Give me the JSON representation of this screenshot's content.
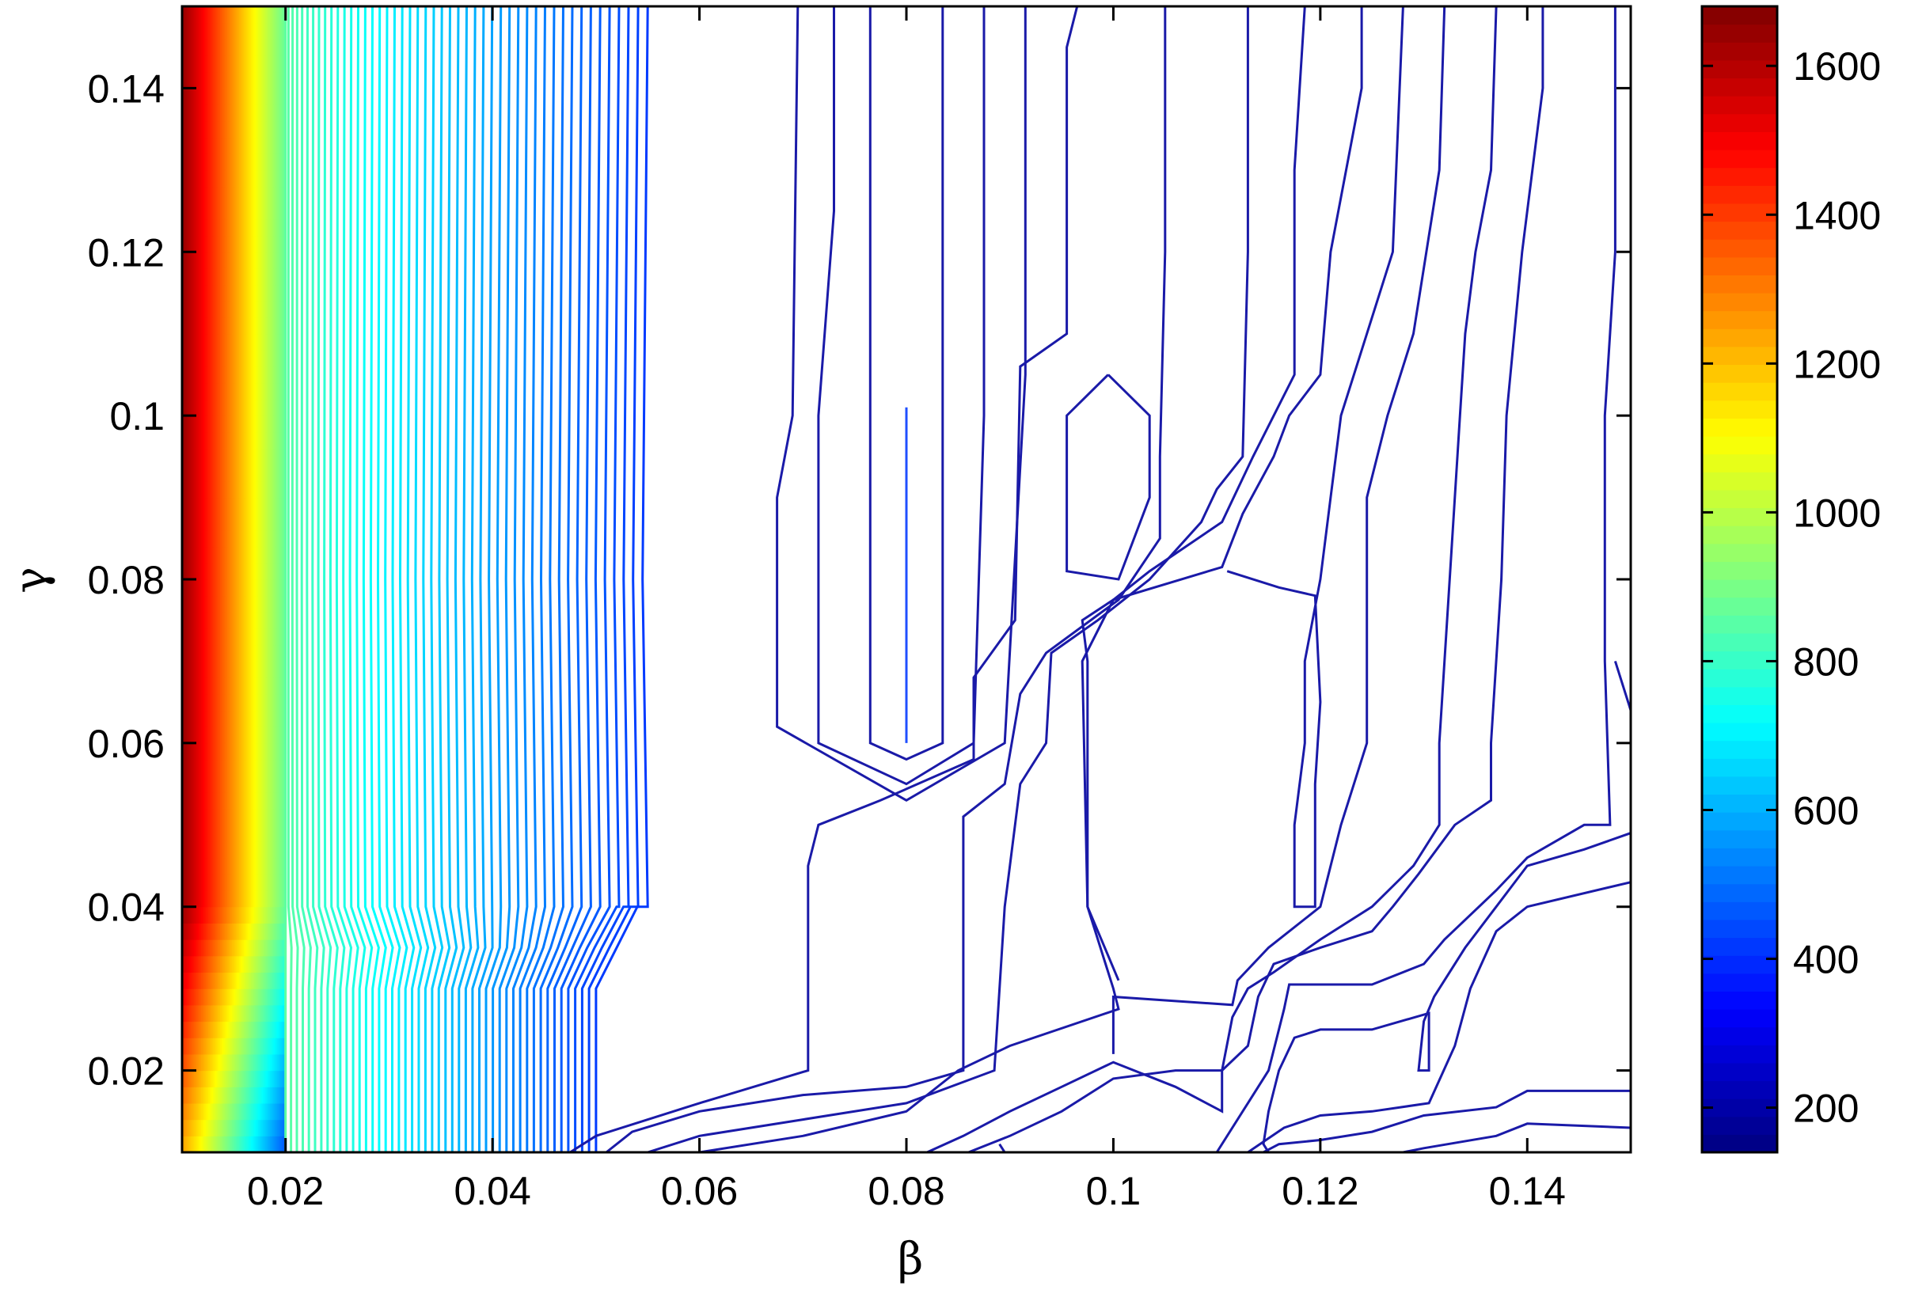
{
  "chart_data": {
    "type": "contour",
    "xlabel": "β",
    "ylabel": "γ",
    "xlim": [
      0.01,
      0.15
    ],
    "ylim": [
      0.01,
      0.15
    ],
    "xticks": [
      "0.02",
      "0.04",
      "0.06",
      "0.08",
      "0.1",
      "0.12",
      "0.14"
    ],
    "xtick_values": [
      0.02,
      0.04,
      0.06,
      0.08,
      0.1,
      0.12,
      0.14
    ],
    "yticks": [
      "0.02",
      "0.04",
      "0.06",
      "0.08",
      "0.1",
      "0.12",
      "0.14"
    ],
    "ytick_values": [
      0.02,
      0.04,
      0.06,
      0.08,
      0.1,
      0.12,
      0.14
    ],
    "colorbar": {
      "range": [
        140,
        1680
      ],
      "ticks": [
        "200",
        "400",
        "600",
        "800",
        "1000",
        "1200",
        "1400",
        "1600"
      ],
      "tick_values": [
        200,
        400,
        600,
        800,
        1000,
        1200,
        1400,
        1600
      ],
      "colormap": "jet"
    },
    "grid": false,
    "contour_lines": [
      {
        "level": 300,
        "points": [
          [
            0.08,
            0.101
          ],
          [
            0.08,
            0.06
          ]
        ]
      },
      {
        "level": 320,
        "points": [
          [
            0.0765,
            0.15
          ],
          [
            0.0765,
            0.125
          ],
          [
            0.0765,
            0.06
          ],
          [
            0.08,
            0.058
          ],
          [
            0.0835,
            0.06
          ],
          [
            0.0835,
            0.1
          ],
          [
            0.0835,
            0.15
          ]
        ]
      },
      {
        "level": 340,
        "points": [
          [
            0.073,
            0.15
          ],
          [
            0.073,
            0.125
          ],
          [
            0.0715,
            0.1
          ],
          [
            0.0715,
            0.06
          ],
          [
            0.08,
            0.055
          ],
          [
            0.0865,
            0.06
          ],
          [
            0.0875,
            0.1
          ],
          [
            0.0875,
            0.15
          ]
        ]
      },
      {
        "level": 355,
        "points": [
          [
            0.0695,
            0.15
          ],
          [
            0.069,
            0.1
          ],
          [
            0.0675,
            0.09
          ],
          [
            0.0675,
            0.062
          ],
          [
            0.08,
            0.053
          ],
          [
            0.0895,
            0.06
          ],
          [
            0.0915,
            0.105
          ],
          [
            0.0915,
            0.15
          ]
        ]
      },
      {
        "level": 340,
        "points": [
          [
            0.0965,
            0.15
          ],
          [
            0.0955,
            0.145
          ],
          [
            0.0955,
            0.11
          ],
          [
            0.091,
            0.106
          ],
          [
            0.0905,
            0.075
          ],
          [
            0.0865,
            0.068
          ],
          [
            0.0865,
            0.058
          ],
          [
            0.0775,
            0.053
          ],
          [
            0.0715,
            0.05
          ],
          [
            0.0705,
            0.045
          ],
          [
            0.0705,
            0.02
          ],
          [
            0.06,
            0.016
          ],
          [
            0.05,
            0.012
          ],
          [
            0.0475,
            0.01
          ]
        ]
      },
      {
        "level": 355,
        "points": [
          [
            0.0995,
            0.105
          ],
          [
            0.1035,
            0.1
          ],
          [
            0.1035,
            0.09
          ],
          [
            0.1005,
            0.08
          ],
          [
            0.0955,
            0.081
          ],
          [
            0.0955,
            0.1
          ],
          [
            0.0995,
            0.105
          ]
        ]
      },
      {
        "level": 365,
        "points": [
          [
            0.105,
            0.15
          ],
          [
            0.105,
            0.12
          ],
          [
            0.1045,
            0.095
          ],
          [
            0.1045,
            0.085
          ],
          [
            0.1005,
            0.0775
          ],
          [
            0.0935,
            0.071
          ],
          [
            0.091,
            0.066
          ],
          [
            0.0895,
            0.055
          ],
          [
            0.0855,
            0.051
          ],
          [
            0.0855,
            0.02
          ],
          [
            0.08,
            0.018
          ],
          [
            0.07,
            0.017
          ],
          [
            0.06,
            0.015
          ],
          [
            0.0535,
            0.0125
          ],
          [
            0.051,
            0.01
          ]
        ]
      },
      {
        "level": 370,
        "points": [
          [
            0.113,
            0.15
          ],
          [
            0.113,
            0.12
          ],
          [
            0.1125,
            0.095
          ],
          [
            0.11,
            0.091
          ],
          [
            0.1085,
            0.087
          ],
          [
            0.1035,
            0.08
          ],
          [
            0.0985,
            0.075
          ],
          [
            0.094,
            0.071
          ],
          [
            0.0935,
            0.06
          ],
          [
            0.091,
            0.055
          ],
          [
            0.0895,
            0.04
          ],
          [
            0.0885,
            0.02
          ],
          [
            0.08,
            0.016
          ],
          [
            0.07,
            0.014
          ],
          [
            0.06,
            0.012
          ],
          [
            0.055,
            0.01
          ]
        ]
      },
      {
        "level": 380,
        "points": [
          [
            0.1185,
            0.15
          ],
          [
            0.1175,
            0.13
          ],
          [
            0.1175,
            0.105
          ],
          [
            0.1135,
            0.095
          ],
          [
            0.1105,
            0.087
          ],
          [
            0.1035,
            0.081
          ],
          [
            0.1,
            0.0775
          ],
          [
            0.097,
            0.075
          ],
          [
            0.0975,
            0.07
          ],
          [
            0.0975,
            0.04
          ],
          [
            0.1,
            0.03
          ],
          [
            0.1005,
            0.0275
          ],
          [
            0.09,
            0.023
          ],
          [
            0.085,
            0.02
          ],
          [
            0.08,
            0.015
          ],
          [
            0.07,
            0.012
          ],
          [
            0.06,
            0.01
          ]
        ]
      },
      {
        "level": 390,
        "points": [
          [
            0.124,
            0.15
          ],
          [
            0.124,
            0.14
          ],
          [
            0.121,
            0.12
          ],
          [
            0.12,
            0.105
          ],
          [
            0.117,
            0.1
          ],
          [
            0.1155,
            0.095
          ],
          [
            0.1125,
            0.088
          ],
          [
            0.1105,
            0.0815
          ],
          [
            0.1,
            0.0775
          ],
          [
            0.097,
            0.07
          ],
          [
            0.0975,
            0.04
          ],
          [
            0.1005,
            0.031
          ]
        ]
      },
      {
        "level": 400,
        "points": [
          [
            0.128,
            0.15
          ],
          [
            0.127,
            0.12
          ],
          [
            0.1245,
            0.11
          ],
          [
            0.122,
            0.1
          ],
          [
            0.121,
            0.09
          ],
          [
            0.12,
            0.08
          ],
          [
            0.1185,
            0.07
          ],
          [
            0.1185,
            0.06
          ],
          [
            0.1175,
            0.05
          ],
          [
            0.1175,
            0.04
          ],
          [
            0.1195,
            0.04
          ],
          [
            0.1195,
            0.055
          ],
          [
            0.12,
            0.065
          ],
          [
            0.1195,
            0.078
          ],
          [
            0.116,
            0.079
          ],
          [
            0.111,
            0.081
          ]
        ]
      },
      {
        "level": 410,
        "points": [
          [
            0.132,
            0.15
          ],
          [
            0.1315,
            0.13
          ],
          [
            0.129,
            0.11
          ],
          [
            0.1265,
            0.1
          ],
          [
            0.1245,
            0.09
          ],
          [
            0.1245,
            0.07
          ],
          [
            0.1245,
            0.06
          ],
          [
            0.122,
            0.05
          ],
          [
            0.12,
            0.04
          ],
          [
            0.115,
            0.035
          ],
          [
            0.112,
            0.031
          ],
          [
            0.1115,
            0.028
          ],
          [
            0.1,
            0.029
          ],
          [
            0.1,
            0.022
          ]
        ]
      },
      {
        "level": 420,
        "points": [
          [
            0.137,
            0.15
          ],
          [
            0.1365,
            0.13
          ],
          [
            0.135,
            0.12
          ],
          [
            0.134,
            0.11
          ],
          [
            0.1335,
            0.1
          ],
          [
            0.1325,
            0.08
          ],
          [
            0.1315,
            0.06
          ],
          [
            0.1315,
            0.05
          ],
          [
            0.129,
            0.045
          ],
          [
            0.125,
            0.04
          ],
          [
            0.12,
            0.036
          ],
          [
            0.1155,
            0.032
          ],
          [
            0.113,
            0.03
          ],
          [
            0.1115,
            0.0265
          ],
          [
            0.1105,
            0.02
          ],
          [
            0.1105,
            0.015
          ],
          [
            0.106,
            0.018
          ],
          [
            0.1,
            0.021
          ],
          [
            0.095,
            0.018
          ],
          [
            0.09,
            0.015
          ],
          [
            0.0855,
            0.012
          ],
          [
            0.082,
            0.01
          ]
        ]
      },
      {
        "level": 430,
        "points": [
          [
            0.1415,
            0.15
          ],
          [
            0.1415,
            0.14
          ],
          [
            0.1405,
            0.13
          ],
          [
            0.1395,
            0.12
          ],
          [
            0.138,
            0.1
          ],
          [
            0.1375,
            0.08
          ],
          [
            0.1365,
            0.06
          ],
          [
            0.1365,
            0.053
          ],
          [
            0.133,
            0.05
          ],
          [
            0.1295,
            0.044
          ],
          [
            0.127,
            0.04
          ],
          [
            0.125,
            0.037
          ],
          [
            0.12,
            0.035
          ],
          [
            0.1155,
            0.033
          ],
          [
            0.114,
            0.029
          ],
          [
            0.113,
            0.023
          ],
          [
            0.1105,
            0.02
          ],
          [
            0.106,
            0.02
          ],
          [
            0.1,
            0.019
          ],
          [
            0.095,
            0.015
          ],
          [
            0.09,
            0.012
          ],
          [
            0.086,
            0.01
          ]
        ]
      },
      {
        "level": 440,
        "points": [
          [
            0.1485,
            0.15
          ],
          [
            0.1485,
            0.12
          ],
          [
            0.1475,
            0.1
          ],
          [
            0.1475,
            0.07
          ],
          [
            0.148,
            0.05
          ],
          [
            0.1455,
            0.05
          ],
          [
            0.14,
            0.046
          ],
          [
            0.137,
            0.042
          ],
          [
            0.132,
            0.036
          ],
          [
            0.13,
            0.033
          ],
          [
            0.125,
            0.0305
          ],
          [
            0.12,
            0.0305
          ],
          [
            0.117,
            0.0305
          ],
          [
            0.1165,
            0.0275
          ],
          [
            0.115,
            0.02
          ],
          [
            0.113,
            0.016
          ],
          [
            0.11,
            0.01
          ]
        ]
      },
      {
        "level": 440,
        "points": [
          [
            0.1485,
            0.07
          ],
          [
            0.15,
            0.064
          ]
        ]
      },
      {
        "level": 450,
        "points": [
          [
            0.15,
            0.049
          ],
          [
            0.1455,
            0.047
          ],
          [
            0.14,
            0.045
          ],
          [
            0.137,
            0.04
          ],
          [
            0.134,
            0.035
          ],
          [
            0.131,
            0.029
          ],
          [
            0.13,
            0.026
          ],
          [
            0.1295,
            0.02
          ],
          [
            0.1305,
            0.02
          ],
          [
            0.1305,
            0.027
          ],
          [
            0.125,
            0.025
          ],
          [
            0.12,
            0.025
          ],
          [
            0.1175,
            0.024
          ],
          [
            0.116,
            0.02
          ],
          [
            0.115,
            0.015
          ],
          [
            0.1145,
            0.011
          ],
          [
            0.115,
            0.01
          ]
        ]
      },
      {
        "level": 455,
        "points": [
          [
            0.15,
            0.043
          ],
          [
            0.14,
            0.04
          ],
          [
            0.137,
            0.037
          ],
          [
            0.1345,
            0.03
          ],
          [
            0.133,
            0.023
          ],
          [
            0.1305,
            0.016
          ],
          [
            0.125,
            0.015
          ],
          [
            0.12,
            0.0145
          ],
          [
            0.1165,
            0.013
          ],
          [
            0.113,
            0.01
          ]
        ]
      },
      {
        "level": 460,
        "points": [
          [
            0.15,
            0.0175
          ],
          [
            0.14,
            0.0175
          ],
          [
            0.137,
            0.0155
          ],
          [
            0.13,
            0.0145
          ],
          [
            0.125,
            0.0125
          ],
          [
            0.12,
            0.0115
          ],
          [
            0.116,
            0.011
          ],
          [
            0.1145,
            0.01
          ]
        ]
      },
      {
        "level": 465,
        "points": [
          [
            0.15,
            0.013
          ],
          [
            0.14,
            0.0135
          ],
          [
            0.137,
            0.012
          ],
          [
            0.13,
            0.0105
          ],
          [
            0.128,
            0.01
          ]
        ]
      },
      {
        "level": 470,
        "points": [
          [
            0.089,
            0.011
          ],
          [
            0.0895,
            0.01
          ]
        ]
      }
    ]
  }
}
